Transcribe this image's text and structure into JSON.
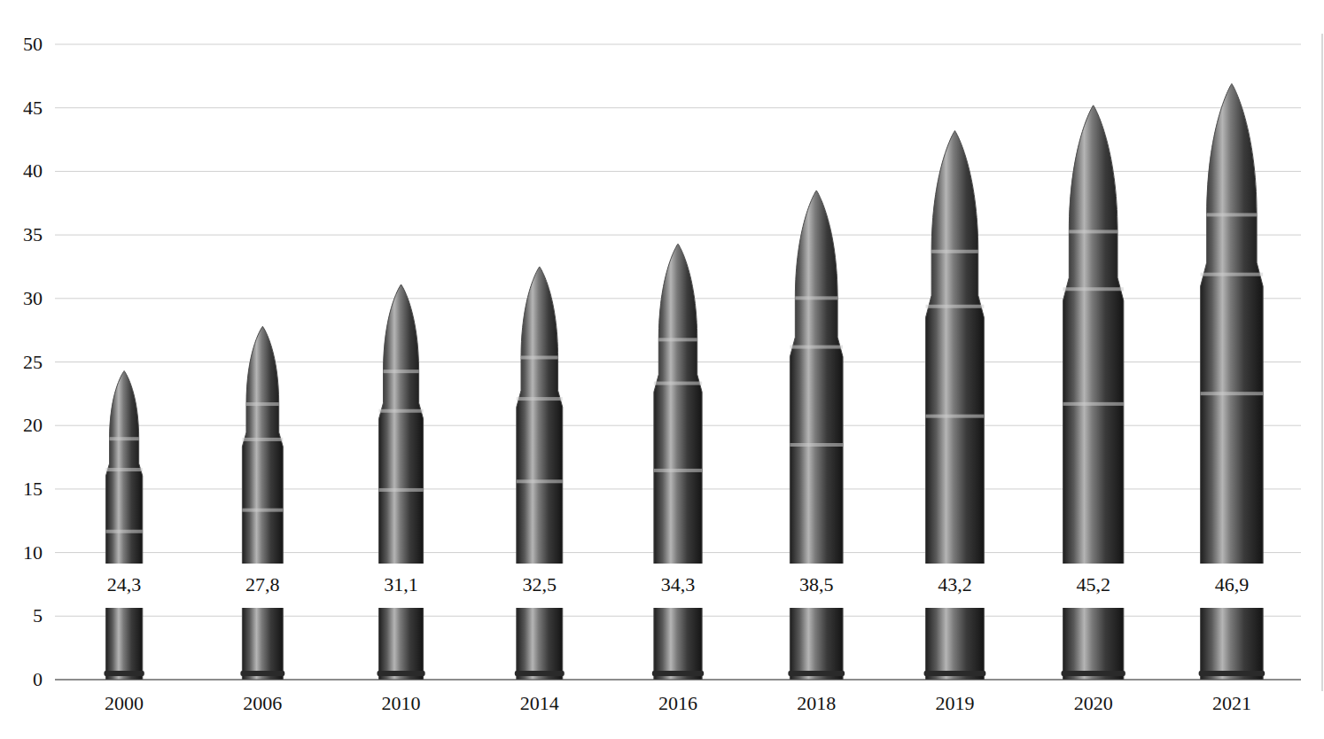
{
  "chart_data": {
    "type": "bar",
    "categories": [
      "2000",
      "2006",
      "2010",
      "2014",
      "2016",
      "2018",
      "2019",
      "2020",
      "2021"
    ],
    "values": [
      24.3,
      27.8,
      31.1,
      32.5,
      34.3,
      38.5,
      43.2,
      45.2,
      46.9
    ],
    "value_labels": [
      "24,3",
      "27,8",
      "31,1",
      "32,5",
      "34,3",
      "38,5",
      "43,2",
      "45,2",
      "46,9"
    ],
    "color": "#4a4a4a",
    "ylim": [
      0,
      50
    ],
    "yticks": [
      0,
      5,
      10,
      15,
      20,
      25,
      30,
      35,
      40,
      45,
      50
    ],
    "grid": true,
    "data_labels": true
  }
}
